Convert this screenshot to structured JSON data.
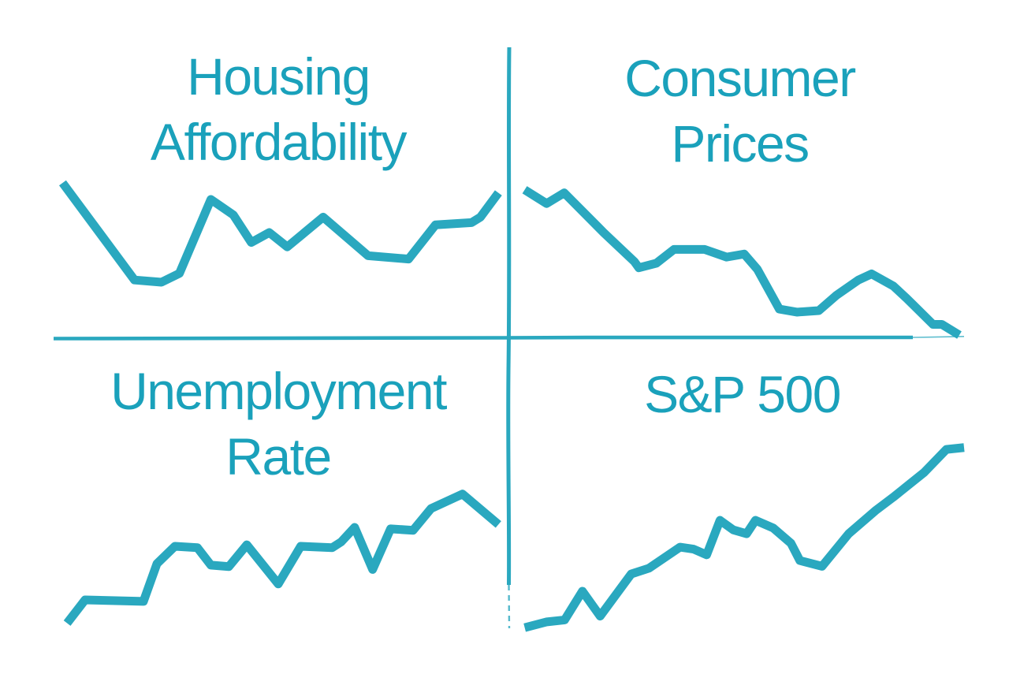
{
  "canvas": {
    "background_color": "#ffffff",
    "accent_text_color": "#1aa1bb",
    "accent_line_color": "#2aa8bf",
    "style": "hand-drawn sketch sparklines in 2x2 quadrant grid"
  },
  "quadrants": [
    {
      "name": "housing-affordability",
      "title_line1": "Housing",
      "title_line2": "Affordability"
    },
    {
      "name": "consumer-prices",
      "title_line1": "Consumer",
      "title_line2": "Prices"
    },
    {
      "name": "unemployment-rate",
      "title_line1": "Unemployment",
      "title_line2": "Rate"
    },
    {
      "name": "sp500",
      "title_line1": "S&P 500",
      "title_line2": ""
    }
  ],
  "chart_data": [
    {
      "type": "line",
      "title": "Housing Affordability",
      "x": [
        2,
        18,
        24,
        28,
        35,
        40,
        44,
        48,
        52,
        60,
        70,
        79,
        85,
        93,
        95,
        99
      ],
      "values": [
        95,
        7,
        5,
        13,
        80,
        66,
        41,
        50,
        37,
        64,
        29,
        26,
        57,
        59,
        64,
        86
      ],
      "xlabel": "",
      "ylabel": "",
      "ylim": [
        0,
        100
      ],
      "grid": false,
      "legend": false,
      "axes": "off",
      "trend": "starts high, dips to low, mid recovery spikes, dips again, rises at end"
    },
    {
      "type": "line",
      "title": "Consumer Prices",
      "x": [
        1,
        6,
        10,
        19,
        26,
        27,
        31,
        35,
        42,
        47,
        51,
        54,
        59,
        63,
        68,
        72,
        77,
        80,
        85,
        88,
        94,
        96,
        100
      ],
      "values": [
        96,
        87,
        94,
        68,
        49,
        45,
        48,
        57,
        57,
        52,
        54,
        44,
        18,
        16,
        17,
        27,
        37,
        41,
        33,
        25,
        8,
        8,
        1
      ],
      "xlabel": "",
      "ylabel": "",
      "ylim": [
        0,
        100
      ],
      "grid": false,
      "legend": false,
      "axes": "off",
      "trend": "steadily declining with plateaus and a late bump, ends at low"
    },
    {
      "type": "line",
      "title": "Unemployment Rate",
      "x": [
        3,
        7,
        20,
        23,
        27,
        32,
        35,
        39,
        43,
        50,
        55,
        62,
        64,
        67,
        71,
        75,
        80,
        84,
        91,
        99
      ],
      "values": [
        3,
        19,
        18,
        44,
        56,
        55,
        43,
        42,
        57,
        30,
        56,
        55,
        59,
        69,
        40,
        68,
        67,
        82,
        92,
        71
      ],
      "xlabel": "",
      "ylabel": "",
      "ylim": [
        0,
        100
      ],
      "grid": false,
      "legend": false,
      "axes": "off",
      "trend": "rising overall with zigzag dips, peaks near end then eases down"
    },
    {
      "type": "line",
      "title": "S&P 500",
      "x": [
        1,
        6,
        10,
        14,
        18,
        25,
        29,
        36,
        39,
        42,
        45,
        48,
        51,
        53,
        57,
        61,
        63,
        68,
        74,
        80,
        84,
        91,
        96,
        100
      ],
      "values": [
        2,
        5,
        6,
        21,
        8,
        30,
        33,
        44,
        43,
        40,
        58,
        53,
        51,
        58,
        54,
        46,
        37,
        34,
        51,
        63,
        70,
        83,
        95,
        96
      ],
      "xlabel": "",
      "ylabel": "",
      "ylim": [
        0,
        100
      ],
      "grid": false,
      "legend": false,
      "axes": "off",
      "trend": "rising with mid double-peak, pullback trough, strong rally to top plateau"
    }
  ]
}
